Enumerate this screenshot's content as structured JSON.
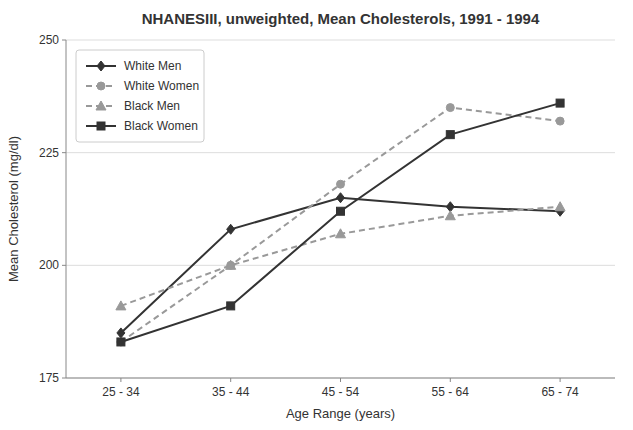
{
  "chart_data": {
    "type": "line",
    "title": "NHANESIII, unweighted, Mean Cholesterols, 1991 - 1994",
    "x_label": "Age Range (years)",
    "y_label": "Mean Cholesterol (mg/dl)",
    "categories": [
      "25 - 34",
      "35 - 44",
      "45 - 54",
      "55 - 64",
      "65 - 74"
    ],
    "series": [
      {
        "name": "White Men",
        "color": "#333333",
        "marker": "diamond",
        "line_style": "solid",
        "values": [
          185,
          208,
          215,
          213,
          212
        ]
      },
      {
        "name": "White Women",
        "color": "#999999",
        "marker": "circle",
        "line_style": "dashed",
        "values": [
          183,
          200,
          218,
          235,
          232
        ]
      },
      {
        "name": "Black Men",
        "color": "#999999",
        "marker": "triangle",
        "line_style": "dashed",
        "values": [
          191,
          200,
          207,
          211,
          213
        ]
      },
      {
        "name": "Black Women",
        "color": "#333333",
        "marker": "square",
        "line_style": "solid",
        "values": [
          183,
          191,
          212,
          229,
          236
        ]
      }
    ],
    "ylim": [
      175,
      250
    ],
    "yticks": [
      175,
      200,
      225,
      250
    ],
    "grid": true,
    "legend": "upper left"
  }
}
